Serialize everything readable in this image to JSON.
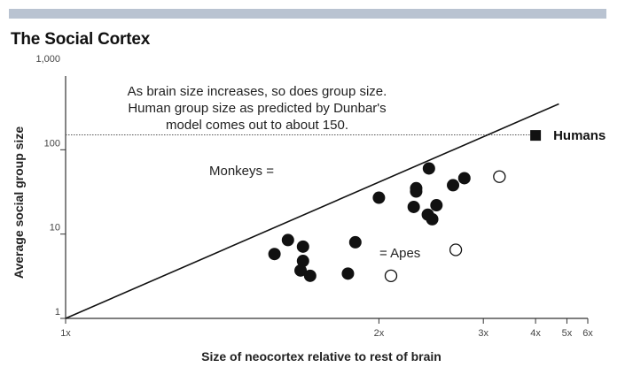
{
  "chart_data": {
    "type": "scatter",
    "title": "The Social Cortex",
    "xlabel": "Size of neocortex relative to rest of brain",
    "ylabel": "Average social group size",
    "xscale": "reciprocal",
    "yscale": "log",
    "xlim": [
      1,
      6
    ],
    "ylim": [
      1,
      1000
    ],
    "xticks": [
      {
        "value": 1,
        "label": "1x"
      },
      {
        "value": 2,
        "label": "2x"
      },
      {
        "value": 3,
        "label": "3x"
      },
      {
        "value": 4,
        "label": "4x"
      },
      {
        "value": 5,
        "label": "5x"
      },
      {
        "value": 6,
        "label": "6x"
      }
    ],
    "yticks": [
      {
        "value": 1,
        "label": "1"
      },
      {
        "value": 10,
        "label": "10"
      },
      {
        "value": 100,
        "label": "100"
      },
      {
        "value": 1000,
        "label": "1,000"
      }
    ],
    "annotation": [
      "As brain size increases, so does group size.",
      "Human group size as predicted by Dunbar's",
      "model comes out to about 150."
    ],
    "reference_line": {
      "y": 150
    },
    "trend_line": {
      "x": [
        1,
        4.7
      ],
      "y": [
        1,
        350
      ]
    },
    "legend": {
      "monkeys": "Monkeys =",
      "apes": "= Apes"
    },
    "humans": {
      "label": "Humans",
      "x": 4.0,
      "y": 148
    },
    "series": [
      {
        "marker": "filled-circle",
        "points": [
          {
            "x": 1.5,
            "y": 5.8
          },
          {
            "x": 1.55,
            "y": 8.5
          },
          {
            "x": 1.61,
            "y": 7.1
          },
          {
            "x": 1.61,
            "y": 4.8
          },
          {
            "x": 1.6,
            "y": 3.7
          },
          {
            "x": 1.64,
            "y": 3.2
          },
          {
            "x": 1.82,
            "y": 3.4
          },
          {
            "x": 1.86,
            "y": 8.0
          },
          {
            "x": 2.0,
            "y": 27
          },
          {
            "x": 2.25,
            "y": 21
          },
          {
            "x": 2.27,
            "y": 32
          },
          {
            "x": 2.27,
            "y": 35
          },
          {
            "x": 2.37,
            "y": 17
          },
          {
            "x": 2.41,
            "y": 15
          },
          {
            "x": 2.45,
            "y": 22
          },
          {
            "x": 2.38,
            "y": 60
          },
          {
            "x": 2.62,
            "y": 38
          },
          {
            "x": 2.75,
            "y": 46
          }
        ]
      },
      {
        "marker": "open-circle",
        "points": [
          {
            "x": 2.08,
            "y": 3.2
          },
          {
            "x": 2.65,
            "y": 6.5
          },
          {
            "x": 3.25,
            "y": 48
          }
        ]
      }
    ]
  }
}
